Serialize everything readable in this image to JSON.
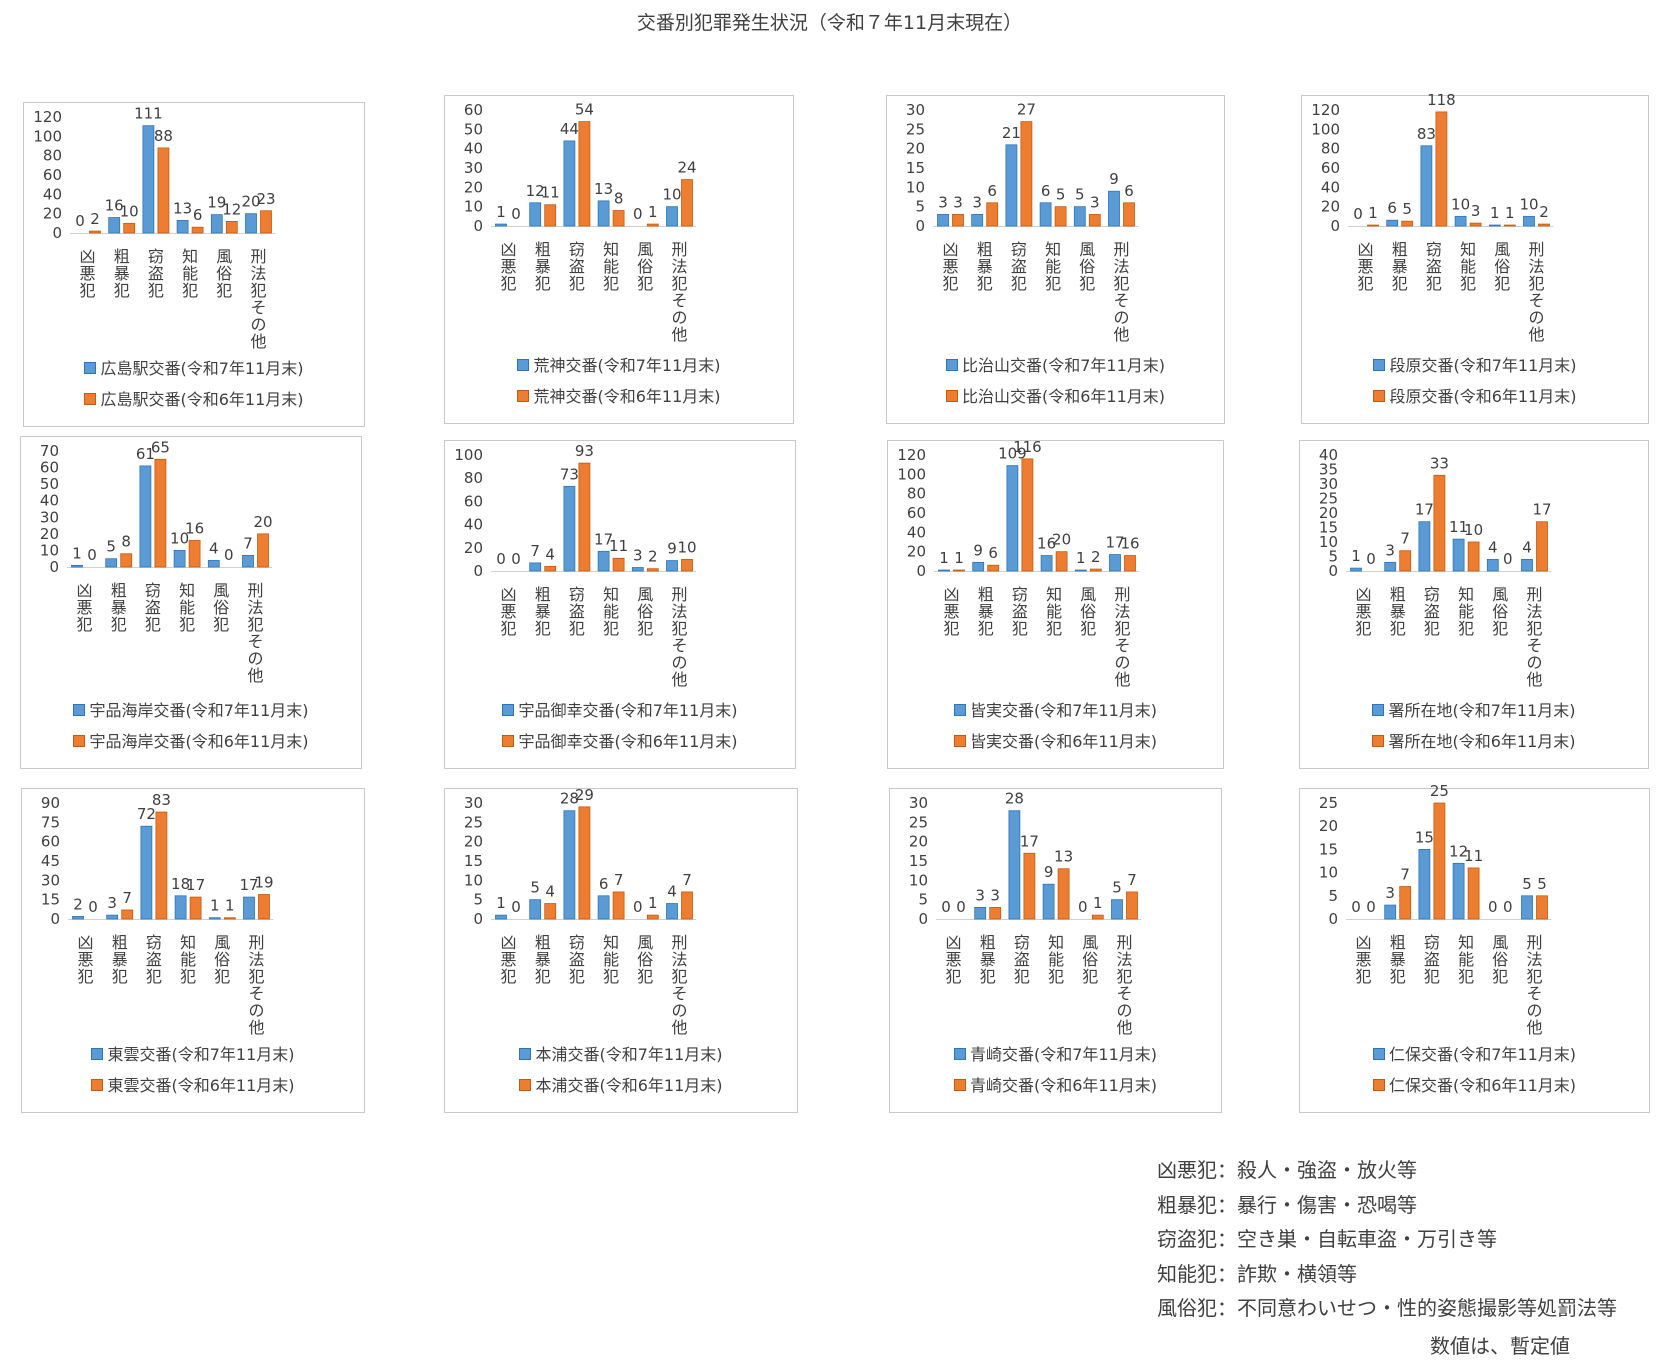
{
  "title": "交番別犯罪発生状況（令和７年11月末現在）",
  "colors": {
    "current": "#5B9BD5",
    "previous": "#ED7D31",
    "border": "#c9c9c9",
    "text": "#404040"
  },
  "chart_data": [
    {
      "type": "bar",
      "categories": [
        "凶悪犯",
        "粗暴犯",
        "窃盗犯",
        "知能犯",
        "風俗犯",
        "刑法犯その他"
      ],
      "series": [
        {
          "name": "広島駅交番(令和7年11月末)",
          "values": [
            0,
            16,
            111,
            13,
            19,
            20
          ]
        },
        {
          "name": "広島駅交番(令和6年11月末)",
          "values": [
            2,
            10,
            88,
            6,
            12,
            23
          ]
        }
      ],
      "ylim": [
        0,
        120
      ],
      "yticks": [
        0,
        20,
        40,
        60,
        80,
        100,
        120
      ]
    },
    {
      "type": "bar",
      "categories": [
        "凶悪犯",
        "粗暴犯",
        "窃盗犯",
        "知能犯",
        "風俗犯",
        "刑法犯その他"
      ],
      "series": [
        {
          "name": "荒神交番(令和7年11月末)",
          "values": [
            1,
            12,
            44,
            13,
            0,
            10
          ]
        },
        {
          "name": "荒神交番(令和6年11月末)",
          "values": [
            0,
            11,
            54,
            8,
            1,
            24
          ]
        }
      ],
      "ylim": [
        0,
        60
      ],
      "yticks": [
        0,
        10,
        20,
        30,
        40,
        50,
        60
      ]
    },
    {
      "type": "bar",
      "categories": [
        "凶悪犯",
        "粗暴犯",
        "窃盗犯",
        "知能犯",
        "風俗犯",
        "刑法犯その他"
      ],
      "series": [
        {
          "name": "比治山交番(令和7年11月末)",
          "values": [
            3,
            3,
            21,
            6,
            5,
            9
          ]
        },
        {
          "name": "比治山交番(令和6年11月末)",
          "values": [
            3,
            6,
            27,
            5,
            3,
            6
          ]
        }
      ],
      "ylim": [
        0,
        30
      ],
      "yticks": [
        0,
        5,
        10,
        15,
        20,
        25,
        30
      ]
    },
    {
      "type": "bar",
      "categories": [
        "凶悪犯",
        "粗暴犯",
        "窃盗犯",
        "知能犯",
        "風俗犯",
        "刑法犯その他"
      ],
      "series": [
        {
          "name": "段原交番(令和7年11月末)",
          "values": [
            0,
            6,
            83,
            10,
            1,
            10
          ]
        },
        {
          "name": "段原交番(令和6年11月末)",
          "values": [
            1,
            5,
            118,
            3,
            1,
            2
          ]
        }
      ],
      "ylim": [
        0,
        120
      ],
      "yticks": [
        0,
        20,
        40,
        60,
        80,
        100,
        120
      ]
    },
    {
      "type": "bar",
      "categories": [
        "凶悪犯",
        "粗暴犯",
        "窃盗犯",
        "知能犯",
        "風俗犯",
        "刑法犯その他"
      ],
      "series": [
        {
          "name": "宇品海岸交番(令和7年11月末)",
          "values": [
            1,
            5,
            61,
            10,
            4,
            7
          ]
        },
        {
          "name": "宇品海岸交番(令和6年11月末)",
          "values": [
            0,
            8,
            65,
            16,
            0,
            20
          ]
        }
      ],
      "ylim": [
        0,
        70
      ],
      "yticks": [
        0,
        10,
        20,
        30,
        40,
        50,
        60,
        70
      ]
    },
    {
      "type": "bar",
      "categories": [
        "凶悪犯",
        "粗暴犯",
        "窃盗犯",
        "知能犯",
        "風俗犯",
        "刑法犯その他"
      ],
      "series": [
        {
          "name": "宇品御幸交番(令和7年11月末)",
          "values": [
            0,
            7,
            73,
            17,
            3,
            9
          ]
        },
        {
          "name": "宇品御幸交番(令和6年11月末)",
          "values": [
            0,
            4,
            93,
            11,
            2,
            10
          ]
        }
      ],
      "ylim": [
        0,
        100
      ],
      "yticks": [
        0,
        20,
        40,
        60,
        80,
        100
      ]
    },
    {
      "type": "bar",
      "categories": [
        "凶悪犯",
        "粗暴犯",
        "窃盗犯",
        "知能犯",
        "風俗犯",
        "刑法犯その他"
      ],
      "series": [
        {
          "name": "皆実交番(令和7年11月末)",
          "values": [
            1,
            9,
            109,
            16,
            1,
            17
          ]
        },
        {
          "name": "皆実交番(令和6年11月末)",
          "values": [
            1,
            6,
            116,
            20,
            2,
            16
          ]
        }
      ],
      "ylim": [
        0,
        120
      ],
      "yticks": [
        0,
        20,
        40,
        60,
        80,
        100,
        120
      ]
    },
    {
      "type": "bar",
      "categories": [
        "凶悪犯",
        "粗暴犯",
        "窃盗犯",
        "知能犯",
        "風俗犯",
        "刑法犯その他"
      ],
      "series": [
        {
          "name": "署所在地(令和7年11月末)",
          "values": [
            1,
            3,
            17,
            11,
            4,
            4
          ]
        },
        {
          "name": "署所在地(令和6年11月末)",
          "values": [
            0,
            7,
            33,
            10,
            0,
            17
          ]
        }
      ],
      "ylim": [
        0,
        40
      ],
      "yticks": [
        0,
        5,
        10,
        15,
        20,
        25,
        30,
        35,
        40
      ]
    },
    {
      "type": "bar",
      "categories": [
        "凶悪犯",
        "粗暴犯",
        "窃盗犯",
        "知能犯",
        "風俗犯",
        "刑法犯その他"
      ],
      "series": [
        {
          "name": "東雲交番(令和7年11月末)",
          "values": [
            2,
            3,
            72,
            18,
            1,
            17
          ]
        },
        {
          "name": "東雲交番(令和6年11月末)",
          "values": [
            0,
            7,
            83,
            17,
            1,
            19
          ]
        }
      ],
      "ylim": [
        0,
        90
      ],
      "yticks": [
        0,
        15,
        30,
        45,
        60,
        75,
        90
      ]
    },
    {
      "type": "bar",
      "categories": [
        "凶悪犯",
        "粗暴犯",
        "窃盗犯",
        "知能犯",
        "風俗犯",
        "刑法犯その他"
      ],
      "series": [
        {
          "name": "本浦交番(令和7年11月末)",
          "values": [
            1,
            5,
            28,
            6,
            0,
            4
          ]
        },
        {
          "name": "本浦交番(令和6年11月末)",
          "values": [
            0,
            4,
            29,
            7,
            1,
            7
          ]
        }
      ],
      "ylim": [
        0,
        30
      ],
      "yticks": [
        0,
        5,
        10,
        15,
        20,
        25,
        30
      ]
    },
    {
      "type": "bar",
      "categories": [
        "凶悪犯",
        "粗暴犯",
        "窃盗犯",
        "知能犯",
        "風俗犯",
        "刑法犯その他"
      ],
      "series": [
        {
          "name": "青崎交番(令和7年11月末)",
          "values": [
            0,
            3,
            28,
            9,
            0,
            5
          ]
        },
        {
          "name": "青崎交番(令和6年11月末)",
          "values": [
            0,
            3,
            17,
            13,
            1,
            7
          ]
        }
      ],
      "ylim": [
        0,
        30
      ],
      "yticks": [
        0,
        5,
        10,
        15,
        20,
        25,
        30
      ]
    },
    {
      "type": "bar",
      "categories": [
        "凶悪犯",
        "粗暴犯",
        "窃盗犯",
        "知能犯",
        "風俗犯",
        "刑法犯その他"
      ],
      "series": [
        {
          "name": "仁保交番(令和7年11月末)",
          "values": [
            0,
            3,
            15,
            12,
            0,
            5
          ]
        },
        {
          "name": "仁保交番(令和6年11月末)",
          "values": [
            0,
            7,
            25,
            11,
            0,
            5
          ]
        }
      ],
      "ylim": [
        0,
        25
      ],
      "yticks": [
        0,
        5,
        10,
        15,
        20,
        25
      ]
    }
  ],
  "notes": [
    "凶悪犯：殺人・強盗・放火等",
    "粗暴犯：暴行・傷害・恐喝等",
    "窃盗犯：空き巣・自転車盗・万引き等",
    "知能犯：詐欺・横領等",
    "風俗犯：不同意わいせつ・性的姿態撮影等処罰法等"
  ],
  "provisional_note": "数値は、暫定値"
}
